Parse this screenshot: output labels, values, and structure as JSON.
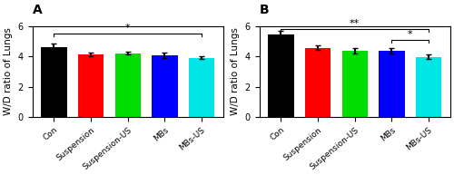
{
  "chart_data": [
    {
      "type": "bar",
      "title": "A",
      "ylabel": "W/D ratio of Lungs",
      "categories": [
        "Con",
        "Suspension",
        "Suspension-US",
        "MBs",
        "MBs-US"
      ],
      "values": [
        4.65,
        4.15,
        4.22,
        4.1,
        3.93
      ],
      "errors": [
        0.22,
        0.12,
        0.1,
        0.18,
        0.1
      ],
      "colors": [
        "#000000",
        "#ff0000",
        "#00dd00",
        "#0000ff",
        "#00e5e5"
      ],
      "ylim": [
        0,
        6
      ],
      "yticks": [
        0,
        2,
        4,
        6
      ],
      "annotations": [
        {
          "text": "*",
          "x1": 0,
          "x2": 4,
          "y": 5.55
        }
      ]
    },
    {
      "type": "bar",
      "title": "B",
      "ylabel": "W/D ratio of Lungs",
      "categories": [
        "Con",
        "Suspension",
        "Suspension-US",
        "MBs",
        "MBs-US"
      ],
      "values": [
        5.45,
        4.58,
        4.38,
        4.38,
        3.97
      ],
      "errors": [
        0.28,
        0.15,
        0.18,
        0.18,
        0.15
      ],
      "colors": [
        "#000000",
        "#ff0000",
        "#00dd00",
        "#0000ff",
        "#00e5e5"
      ],
      "ylim": [
        0,
        6
      ],
      "yticks": [
        0,
        2,
        4,
        6
      ],
      "annotations": [
        {
          "text": "**",
          "x1": 0,
          "x2": 4,
          "y": 5.82
        },
        {
          "text": "*",
          "x1": 3,
          "x2": 4,
          "y": 5.08
        }
      ]
    }
  ]
}
